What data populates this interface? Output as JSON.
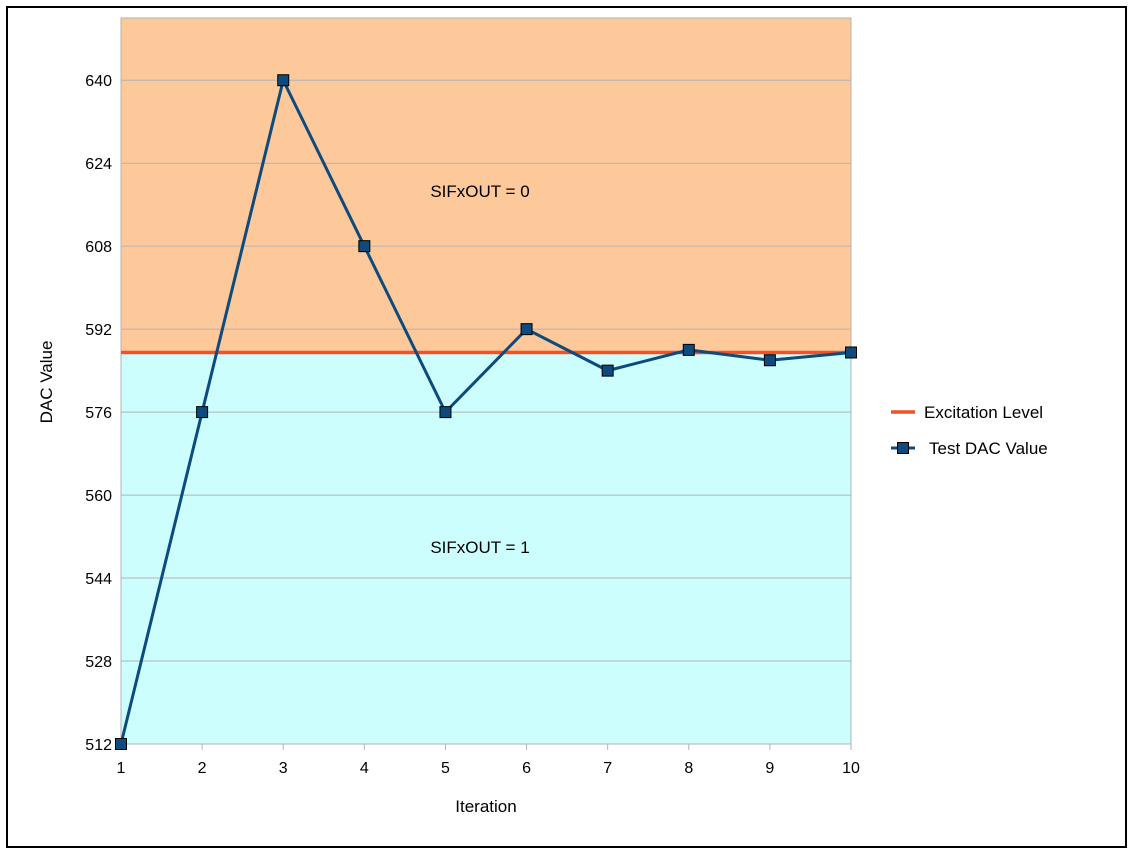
{
  "chart_data": {
    "type": "line",
    "title": "",
    "xlabel": "Iteration",
    "ylabel": "DAC Value",
    "x": [
      1,
      2,
      3,
      4,
      5,
      6,
      7,
      8,
      9,
      10
    ],
    "xticks": [
      "1",
      "2",
      "3",
      "4",
      "5",
      "6",
      "7",
      "8",
      "9",
      "10"
    ],
    "yticks": [
      "512",
      "528",
      "544",
      "560",
      "576",
      "592",
      "608",
      "624",
      "640"
    ],
    "ylim": [
      512,
      652
    ],
    "grid": true,
    "legend_position": "right",
    "series": [
      {
        "name": "Excitation Level",
        "values": [
          587.5,
          587.5,
          587.5,
          587.5,
          587.5,
          587.5,
          587.5,
          587.5,
          587.5,
          587.5
        ],
        "color": "#f0522a",
        "marker": "none"
      },
      {
        "name": "Test DAC Value",
        "values": [
          512,
          576,
          640,
          608,
          576,
          592,
          584,
          588,
          586,
          587.5
        ],
        "color": "#0d4a7e",
        "marker": "square"
      }
    ],
    "regions": [
      {
        "label": "SIFxOUT = 0",
        "from": 587.5,
        "to": 652,
        "color": "#fdc99a"
      },
      {
        "label": "SIFxOUT = 1",
        "from": 512,
        "to": 587.5,
        "color": "#ccfefe"
      }
    ]
  }
}
